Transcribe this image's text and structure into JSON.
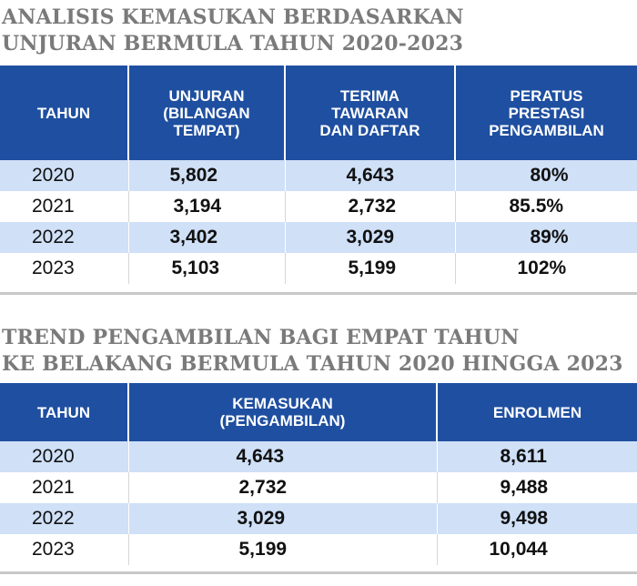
{
  "table1": {
    "title_lines": [
      "ANALISIS KEMASUKAN BERDASARKAN",
      "UNJURAN BERMULA TAHUN 2020-2023"
    ],
    "headers": [
      [
        "TAHUN"
      ],
      [
        "UNJURAN",
        "(BILANGAN",
        "TEMPAT)"
      ],
      [
        "TERIMA",
        "TAWARAN",
        "DAN DAFTAR"
      ],
      [
        "PERATUS",
        "PRESTASI",
        "PENGAMBILAN"
      ]
    ],
    "rows": [
      [
        "2020",
        "5,802",
        "4,643",
        "80%"
      ],
      [
        "2021",
        "3,194",
        "2,732",
        "85.5%"
      ],
      [
        "2022",
        "3,402",
        "3,029",
        "89%"
      ],
      [
        "2023",
        "5,103",
        "5,199",
        "102%"
      ]
    ]
  },
  "table2": {
    "title_lines": [
      "TREND PENGAMBILAN BAGI EMPAT TAHUN",
      "KE BELAKANG BERMULA TAHUN 2020 HINGGA 2023"
    ],
    "headers": [
      [
        "TAHUN"
      ],
      [
        "KEMASUKAN",
        "(PENGAMBILAN)"
      ],
      [
        "ENROLMEN"
      ]
    ],
    "rows": [
      [
        "2020",
        "4,643",
        "8,611"
      ],
      [
        "2021",
        "2,732",
        "9,488"
      ],
      [
        "2022",
        "3,029",
        "9,498"
      ],
      [
        "2023",
        "5,199",
        "10,044"
      ]
    ]
  },
  "colors": {
    "header_bg": "#1f4fa0",
    "band_bg": "#cfe0f7",
    "title_text": "#7a7a7a"
  }
}
